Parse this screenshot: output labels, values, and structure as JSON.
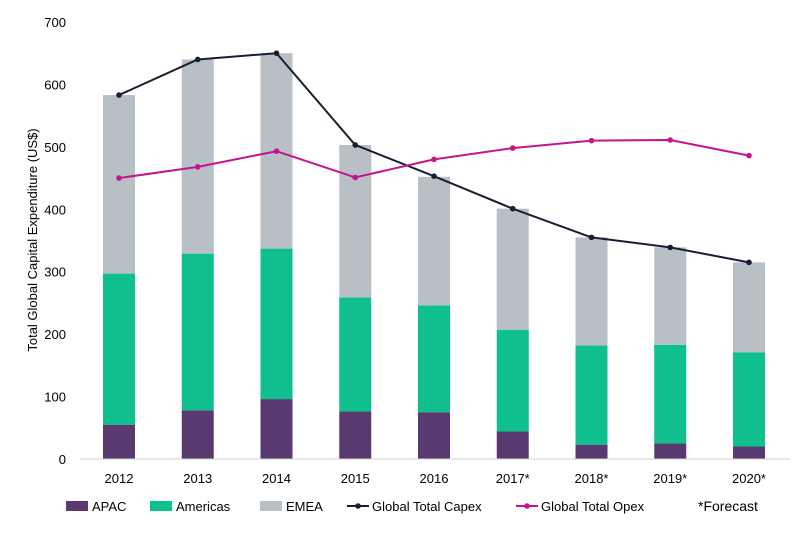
{
  "chart_data": {
    "type": "bar",
    "stacked": true,
    "title": "",
    "xlabel": "",
    "ylabel": "Total Global Capital Expenditure (US$)",
    "ylim": [
      0,
      700
    ],
    "yticks": [
      "0",
      "100",
      "200",
      "300",
      "400",
      "500",
      "600",
      "700"
    ],
    "grid": false,
    "legend_position": "bottom",
    "categories": [
      "2012",
      "2013",
      "2014",
      "2015",
      "2016",
      "2017*",
      "2018*",
      "2019*",
      "2020*"
    ],
    "series": [
      {
        "name": "APAC",
        "kind": "bar",
        "color": "#583a71",
        "values": [
          55,
          78,
          96,
          76,
          75,
          44,
          23,
          25,
          20
        ]
      },
      {
        "name": "Americas",
        "kind": "bar",
        "color": "#0fbf8e",
        "values": [
          242,
          251,
          241,
          183,
          171,
          163,
          159,
          158,
          151
        ]
      },
      {
        "name": "EMEA",
        "kind": "bar",
        "color": "#b8bfc5",
        "values": [
          286,
          311,
          313,
          244,
          206,
          194,
          173,
          156,
          144
        ]
      },
      {
        "name": "Global Total Capex",
        "kind": "line",
        "color": "#1b1d35",
        "values": [
          583,
          640,
          650,
          503,
          453,
          401,
          355,
          339,
          315
        ]
      },
      {
        "name": "Global Total Opex",
        "kind": "line",
        "color": "#c4158e",
        "values": [
          450,
          468,
          493,
          451,
          480,
          498,
          510,
          511,
          486
        ]
      }
    ],
    "note": "*Forecast"
  }
}
